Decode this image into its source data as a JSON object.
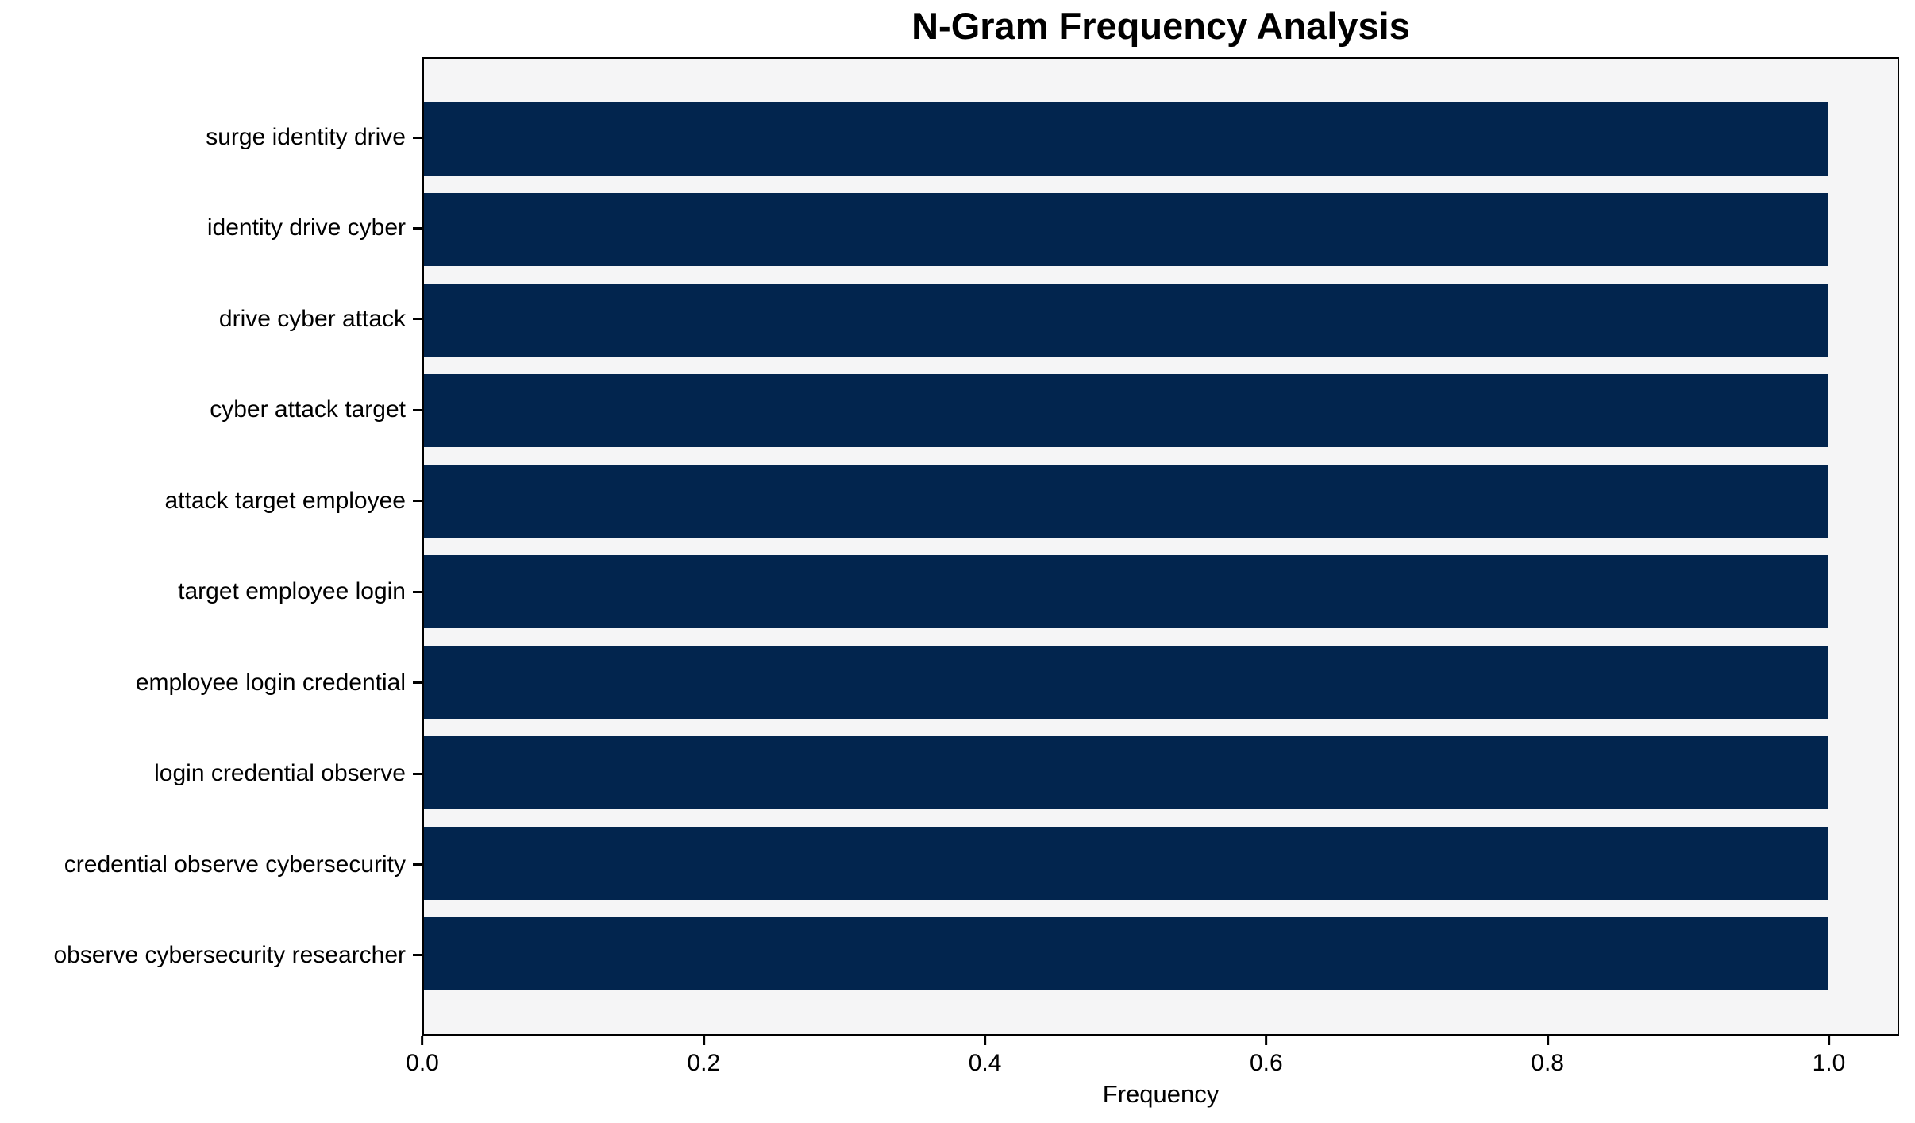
{
  "chart_data": {
    "type": "bar",
    "orientation": "horizontal",
    "title": "N-Gram Frequency Analysis",
    "xlabel": "Frequency",
    "ylabel": "",
    "categories": [
      "surge identity drive",
      "identity drive cyber",
      "drive cyber attack",
      "cyber attack target",
      "attack target employee",
      "target employee login",
      "employee login credential",
      "login credential observe",
      "credential observe cybersecurity",
      "observe cybersecurity researcher"
    ],
    "values": [
      1.0,
      1.0,
      1.0,
      1.0,
      1.0,
      1.0,
      1.0,
      1.0,
      1.0,
      1.0
    ],
    "xlim": [
      0,
      1.05
    ],
    "xticks": [
      0.0,
      0.2,
      0.4,
      0.6,
      0.8,
      1.0
    ],
    "xtick_labels": [
      "0.0",
      "0.2",
      "0.4",
      "0.6",
      "0.8",
      "1.0"
    ],
    "grid": false,
    "legend": null,
    "colors": {
      "bar": "#02254e",
      "plot_background": "#f5f5f6",
      "figure_background": "#ffffff",
      "axis": "#000000",
      "text": "#000000"
    }
  }
}
